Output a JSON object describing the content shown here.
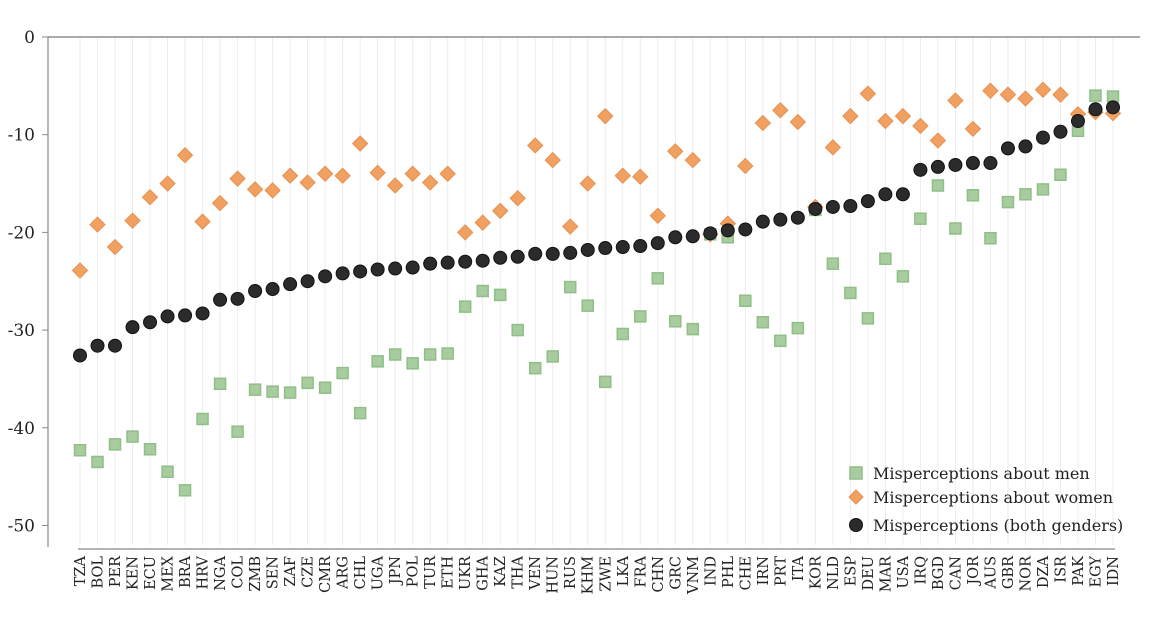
{
  "chart_data": {
    "type": "scatter",
    "title": "",
    "xlabel": "",
    "ylabel": "",
    "ylim": [
      -52,
      0
    ],
    "yticks": [
      0,
      -10,
      -20,
      -30,
      -40,
      -50
    ],
    "grid": "vertical",
    "legend_position": "bottom-right",
    "categories": [
      "TZA",
      "BOL",
      "PER",
      "KEN",
      "ECU",
      "MEX",
      "BRA",
      "HRV",
      "NGA",
      "COL",
      "ZMB",
      "SEN",
      "ZAF",
      "CZE",
      "CMR",
      "ARG",
      "CHL",
      "UGA",
      "JPN",
      "POL",
      "TUR",
      "ETH",
      "UKR",
      "GHA",
      "KAZ",
      "THA",
      "VEN",
      "HUN",
      "RUS",
      "KHM",
      "ZWE",
      "LKA",
      "FRA",
      "CHN",
      "GRC",
      "VNM",
      "IND",
      "PHL",
      "CHE",
      "IRN",
      "PRT",
      "ITA",
      "KOR",
      "NLD",
      "ESP",
      "DEU",
      "MAR",
      "USA",
      "IRQ",
      "BGD",
      "CAN",
      "JOR",
      "AUS",
      "GBR",
      "NOR",
      "DZA",
      "ISR",
      "PAK",
      "EGY",
      "IDN"
    ],
    "series": [
      {
        "name": "Misperceptions about men",
        "marker": "square",
        "color": "#a8cca0",
        "values": [
          -42.3,
          -43.5,
          -41.7,
          -40.9,
          -42.2,
          -44.5,
          -46.4,
          -39.1,
          -35.5,
          -40.4,
          -36.1,
          -36.3,
          -36.4,
          -35.4,
          -35.9,
          -34.4,
          -38.5,
          -33.2,
          -32.5,
          -33.4,
          -32.5,
          -32.4,
          -27.6,
          -26.0,
          -26.4,
          -30.0,
          -33.9,
          -32.7,
          -25.6,
          -27.5,
          -35.3,
          -30.4,
          -28.6,
          -24.7,
          -29.1,
          -29.9,
          -20.2,
          -20.5,
          -27.0,
          -29.2,
          -31.1,
          -29.8,
          -17.7,
          -23.2,
          -26.2,
          -28.8,
          -22.7,
          -24.5,
          -18.6,
          -15.2,
          -19.6,
          -16.2,
          -20.6,
          -16.9,
          -16.1,
          -15.6,
          -14.1,
          -9.6,
          -6.0,
          -6.1
        ]
      },
      {
        "name": "Misperceptions about women",
        "marker": "diamond",
        "color": "#f0a060",
        "values": [
          -23.9,
          -19.2,
          -21.5,
          -18.8,
          -16.4,
          -15.0,
          -12.1,
          -18.9,
          -17.0,
          -14.5,
          -15.6,
          -15.7,
          -14.2,
          -14.9,
          -14.0,
          -14.2,
          -10.9,
          -13.9,
          -15.2,
          -14.0,
          -14.9,
          -14.0,
          -20.0,
          -19.0,
          -17.8,
          -16.5,
          -11.1,
          -12.6,
          -19.4,
          -15.0,
          -8.1,
          -14.2,
          -14.3,
          -18.3,
          -11.7,
          -12.6,
          -20.2,
          -19.1,
          -13.2,
          -8.8,
          -7.5,
          -8.7,
          -17.4,
          -11.3,
          -8.1,
          -5.8,
          -8.6,
          -8.1,
          -9.1,
          -10.6,
          -6.5,
          -9.4,
          -5.5,
          -5.9,
          -6.3,
          -5.4,
          -5.9,
          -7.9,
          -7.7,
          -7.8
        ]
      },
      {
        "name": "Misperceptions (both genders)",
        "marker": "circle",
        "color": "#2b2b2b",
        "values": [
          -32.6,
          -31.6,
          -31.6,
          -29.7,
          -29.2,
          -28.6,
          -28.5,
          -28.3,
          -26.9,
          -26.8,
          -26.0,
          -25.8,
          -25.3,
          -25.0,
          -24.5,
          -24.2,
          -24.0,
          -23.8,
          -23.7,
          -23.6,
          -23.2,
          -23.1,
          -23.0,
          -22.9,
          -22.6,
          -22.5,
          -22.2,
          -22.2,
          -22.1,
          -21.8,
          -21.6,
          -21.5,
          -21.4,
          -21.1,
          -20.5,
          -20.4,
          -20.1,
          -19.8,
          -19.7,
          -18.9,
          -18.7,
          -18.5,
          -17.6,
          -17.4,
          -17.3,
          -16.8,
          -16.1,
          -16.1,
          -13.6,
          -13.3,
          -13.1,
          -12.9,
          -12.9,
          -11.4,
          -11.2,
          -10.3,
          -9.7,
          -8.6,
          -7.4,
          -7.2
        ]
      }
    ]
  }
}
